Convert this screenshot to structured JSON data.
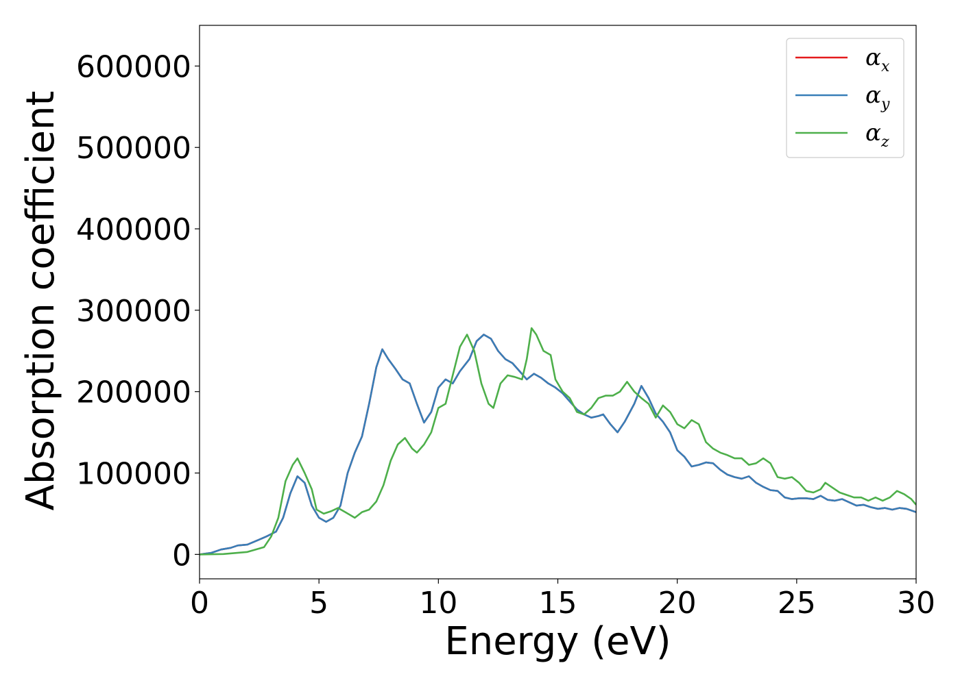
{
  "chart_data": {
    "type": "line",
    "title": "",
    "xlabel": "Energy (eV)",
    "ylabel": "Absorption coefficient",
    "xlim": [
      0,
      30
    ],
    "ylim": [
      -30000,
      650000
    ],
    "xticks": [
      0,
      5,
      10,
      15,
      20,
      25,
      30
    ],
    "yticks": [
      0,
      100000,
      200000,
      300000,
      400000,
      500000,
      600000
    ],
    "xtick_labels": [
      "0",
      "5",
      "10",
      "15",
      "20",
      "25",
      "30"
    ],
    "ytick_labels": [
      "0",
      "100000",
      "200000",
      "300000",
      "400000",
      "500000",
      "600000"
    ],
    "grid": false,
    "legend_position": "top-right",
    "series": [
      {
        "name": "α_x",
        "legend_base": "α",
        "legend_sub": "x",
        "color": "#e41a1c",
        "points": [
          [
            0,
            0
          ],
          [
            0.5,
            2000
          ],
          [
            0.9,
            6000
          ],
          [
            1.3,
            8000
          ],
          [
            1.6,
            11000
          ],
          [
            2.0,
            12000
          ],
          [
            2.4,
            17000
          ],
          [
            2.8,
            22000
          ],
          [
            3.2,
            28000
          ],
          [
            3.5,
            45000
          ],
          [
            3.8,
            75000
          ],
          [
            4.1,
            96000
          ],
          [
            4.4,
            88000
          ],
          [
            4.7,
            60000
          ],
          [
            5.0,
            45000
          ],
          [
            5.3,
            40000
          ],
          [
            5.6,
            45000
          ],
          [
            5.9,
            60000
          ],
          [
            6.2,
            100000
          ],
          [
            6.5,
            125000
          ],
          [
            6.8,
            145000
          ],
          [
            7.1,
            185000
          ],
          [
            7.4,
            230000
          ],
          [
            7.65,
            252000
          ],
          [
            7.9,
            240000
          ],
          [
            8.2,
            228000
          ],
          [
            8.5,
            215000
          ],
          [
            8.8,
            210000
          ],
          [
            9.1,
            185000
          ],
          [
            9.4,
            162000
          ],
          [
            9.7,
            175000
          ],
          [
            10.0,
            205000
          ],
          [
            10.3,
            215000
          ],
          [
            10.6,
            210000
          ],
          [
            10.9,
            225000
          ],
          [
            11.3,
            240000
          ],
          [
            11.6,
            262000
          ],
          [
            11.9,
            270000
          ],
          [
            12.2,
            265000
          ],
          [
            12.5,
            250000
          ],
          [
            12.8,
            240000
          ],
          [
            13.1,
            235000
          ],
          [
            13.4,
            225000
          ],
          [
            13.7,
            215000
          ],
          [
            14.0,
            222000
          ],
          [
            14.3,
            217000
          ],
          [
            14.6,
            210000
          ],
          [
            14.9,
            205000
          ],
          [
            15.2,
            198000
          ],
          [
            15.5,
            188000
          ],
          [
            15.8,
            178000
          ],
          [
            16.1,
            172000
          ],
          [
            16.4,
            168000
          ],
          [
            16.7,
            170000
          ],
          [
            16.9,
            172000
          ],
          [
            17.2,
            160000
          ],
          [
            17.5,
            150000
          ],
          [
            17.8,
            163000
          ],
          [
            18.2,
            185000
          ],
          [
            18.5,
            207000
          ],
          [
            18.8,
            192000
          ],
          [
            19.1,
            173000
          ],
          [
            19.4,
            163000
          ],
          [
            19.7,
            150000
          ],
          [
            20.0,
            128000
          ],
          [
            20.3,
            120000
          ],
          [
            20.6,
            108000
          ],
          [
            20.9,
            110000
          ],
          [
            21.2,
            113000
          ],
          [
            21.5,
            112000
          ],
          [
            21.8,
            104000
          ],
          [
            22.1,
            98000
          ],
          [
            22.4,
            95000
          ],
          [
            22.7,
            93000
          ],
          [
            23.0,
            96000
          ],
          [
            23.3,
            88000
          ],
          [
            23.6,
            83000
          ],
          [
            23.9,
            79000
          ],
          [
            24.2,
            78000
          ],
          [
            24.5,
            70000
          ],
          [
            24.8,
            68000
          ],
          [
            25.1,
            69000
          ],
          [
            25.4,
            69000
          ],
          [
            25.7,
            68000
          ],
          [
            26.0,
            72000
          ],
          [
            26.3,
            67000
          ],
          [
            26.6,
            66000
          ],
          [
            26.9,
            68000
          ],
          [
            27.2,
            64000
          ],
          [
            27.5,
            60000
          ],
          [
            27.8,
            61000
          ],
          [
            28.1,
            58000
          ],
          [
            28.4,
            56000
          ],
          [
            28.7,
            57000
          ],
          [
            29.0,
            55000
          ],
          [
            29.3,
            57000
          ],
          [
            29.6,
            56000
          ],
          [
            30.0,
            52000
          ]
        ]
      },
      {
        "name": "α_y",
        "legend_base": "α",
        "legend_sub": "y",
        "color": "#377eb8",
        "points": [
          [
            0,
            0
          ],
          [
            0.5,
            2000
          ],
          [
            0.9,
            6000
          ],
          [
            1.3,
            8000
          ],
          [
            1.6,
            11000
          ],
          [
            2.0,
            12000
          ],
          [
            2.4,
            17000
          ],
          [
            2.8,
            22000
          ],
          [
            3.2,
            28000
          ],
          [
            3.5,
            45000
          ],
          [
            3.8,
            75000
          ],
          [
            4.1,
            96000
          ],
          [
            4.4,
            88000
          ],
          [
            4.7,
            60000
          ],
          [
            5.0,
            45000
          ],
          [
            5.3,
            40000
          ],
          [
            5.6,
            45000
          ],
          [
            5.9,
            60000
          ],
          [
            6.2,
            100000
          ],
          [
            6.5,
            125000
          ],
          [
            6.8,
            145000
          ],
          [
            7.1,
            185000
          ],
          [
            7.4,
            230000
          ],
          [
            7.65,
            252000
          ],
          [
            7.9,
            240000
          ],
          [
            8.2,
            228000
          ],
          [
            8.5,
            215000
          ],
          [
            8.8,
            210000
          ],
          [
            9.1,
            185000
          ],
          [
            9.4,
            162000
          ],
          [
            9.7,
            175000
          ],
          [
            10.0,
            205000
          ],
          [
            10.3,
            215000
          ],
          [
            10.6,
            210000
          ],
          [
            10.9,
            225000
          ],
          [
            11.3,
            240000
          ],
          [
            11.6,
            262000
          ],
          [
            11.9,
            270000
          ],
          [
            12.2,
            265000
          ],
          [
            12.5,
            250000
          ],
          [
            12.8,
            240000
          ],
          [
            13.1,
            235000
          ],
          [
            13.4,
            225000
          ],
          [
            13.7,
            215000
          ],
          [
            14.0,
            222000
          ],
          [
            14.3,
            217000
          ],
          [
            14.6,
            210000
          ],
          [
            14.9,
            205000
          ],
          [
            15.2,
            198000
          ],
          [
            15.5,
            188000
          ],
          [
            15.8,
            178000
          ],
          [
            16.1,
            172000
          ],
          [
            16.4,
            168000
          ],
          [
            16.7,
            170000
          ],
          [
            16.9,
            172000
          ],
          [
            17.2,
            160000
          ],
          [
            17.5,
            150000
          ],
          [
            17.8,
            163000
          ],
          [
            18.2,
            185000
          ],
          [
            18.5,
            207000
          ],
          [
            18.8,
            192000
          ],
          [
            19.1,
            173000
          ],
          [
            19.4,
            163000
          ],
          [
            19.7,
            150000
          ],
          [
            20.0,
            128000
          ],
          [
            20.3,
            120000
          ],
          [
            20.6,
            108000
          ],
          [
            20.9,
            110000
          ],
          [
            21.2,
            113000
          ],
          [
            21.5,
            112000
          ],
          [
            21.8,
            104000
          ],
          [
            22.1,
            98000
          ],
          [
            22.4,
            95000
          ],
          [
            22.7,
            93000
          ],
          [
            23.0,
            96000
          ],
          [
            23.3,
            88000
          ],
          [
            23.6,
            83000
          ],
          [
            23.9,
            79000
          ],
          [
            24.2,
            78000
          ],
          [
            24.5,
            70000
          ],
          [
            24.8,
            68000
          ],
          [
            25.1,
            69000
          ],
          [
            25.4,
            69000
          ],
          [
            25.7,
            68000
          ],
          [
            26.0,
            72000
          ],
          [
            26.3,
            67000
          ],
          [
            26.6,
            66000
          ],
          [
            26.9,
            68000
          ],
          [
            27.2,
            64000
          ],
          [
            27.5,
            60000
          ],
          [
            27.8,
            61000
          ],
          [
            28.1,
            58000
          ],
          [
            28.4,
            56000
          ],
          [
            28.7,
            57000
          ],
          [
            29.0,
            55000
          ],
          [
            29.3,
            57000
          ],
          [
            29.6,
            56000
          ],
          [
            30.0,
            52000
          ]
        ]
      },
      {
        "name": "α_z",
        "legend_base": "α",
        "legend_sub": "z",
        "color": "#4daf4a",
        "points": [
          [
            0,
            0
          ],
          [
            1.0,
            500
          ],
          [
            2.0,
            3000
          ],
          [
            2.7,
            9000
          ],
          [
            3.0,
            22000
          ],
          [
            3.3,
            45000
          ],
          [
            3.6,
            90000
          ],
          [
            3.9,
            110000
          ],
          [
            4.1,
            118000
          ],
          [
            4.4,
            100000
          ],
          [
            4.7,
            80000
          ],
          [
            4.9,
            55000
          ],
          [
            5.2,
            50000
          ],
          [
            5.5,
            53000
          ],
          [
            5.8,
            57000
          ],
          [
            6.1,
            52000
          ],
          [
            6.5,
            45000
          ],
          [
            6.8,
            52000
          ],
          [
            7.1,
            55000
          ],
          [
            7.4,
            65000
          ],
          [
            7.7,
            85000
          ],
          [
            8.0,
            115000
          ],
          [
            8.3,
            135000
          ],
          [
            8.6,
            143000
          ],
          [
            8.9,
            130000
          ],
          [
            9.1,
            125000
          ],
          [
            9.4,
            135000
          ],
          [
            9.7,
            150000
          ],
          [
            10.0,
            180000
          ],
          [
            10.3,
            185000
          ],
          [
            10.6,
            220000
          ],
          [
            10.9,
            255000
          ],
          [
            11.2,
            270000
          ],
          [
            11.5,
            250000
          ],
          [
            11.8,
            210000
          ],
          [
            12.1,
            185000
          ],
          [
            12.3,
            180000
          ],
          [
            12.6,
            210000
          ],
          [
            12.9,
            220000
          ],
          [
            13.2,
            218000
          ],
          [
            13.5,
            215000
          ],
          [
            13.7,
            240000
          ],
          [
            13.9,
            278000
          ],
          [
            14.1,
            270000
          ],
          [
            14.4,
            250000
          ],
          [
            14.7,
            245000
          ],
          [
            14.9,
            215000
          ],
          [
            15.2,
            200000
          ],
          [
            15.5,
            192000
          ],
          [
            15.8,
            175000
          ],
          [
            16.1,
            172000
          ],
          [
            16.4,
            180000
          ],
          [
            16.7,
            192000
          ],
          [
            17.0,
            195000
          ],
          [
            17.3,
            195000
          ],
          [
            17.6,
            200000
          ],
          [
            17.9,
            212000
          ],
          [
            18.2,
            200000
          ],
          [
            18.5,
            192000
          ],
          [
            18.8,
            185000
          ],
          [
            19.1,
            168000
          ],
          [
            19.4,
            183000
          ],
          [
            19.7,
            175000
          ],
          [
            20.0,
            160000
          ],
          [
            20.3,
            155000
          ],
          [
            20.6,
            165000
          ],
          [
            20.9,
            160000
          ],
          [
            21.2,
            138000
          ],
          [
            21.5,
            130000
          ],
          [
            21.8,
            125000
          ],
          [
            22.1,
            122000
          ],
          [
            22.4,
            118000
          ],
          [
            22.7,
            118000
          ],
          [
            23.0,
            110000
          ],
          [
            23.3,
            112000
          ],
          [
            23.6,
            118000
          ],
          [
            23.9,
            112000
          ],
          [
            24.2,
            95000
          ],
          [
            24.5,
            93000
          ],
          [
            24.8,
            95000
          ],
          [
            25.1,
            88000
          ],
          [
            25.4,
            78000
          ],
          [
            25.7,
            76000
          ],
          [
            26.0,
            80000
          ],
          [
            26.2,
            88000
          ],
          [
            26.5,
            82000
          ],
          [
            26.8,
            76000
          ],
          [
            27.1,
            73000
          ],
          [
            27.4,
            70000
          ],
          [
            27.7,
            70000
          ],
          [
            28.0,
            66000
          ],
          [
            28.3,
            70000
          ],
          [
            28.6,
            66000
          ],
          [
            28.9,
            70000
          ],
          [
            29.2,
            78000
          ],
          [
            29.5,
            74000
          ],
          [
            29.8,
            68000
          ],
          [
            30.0,
            61000
          ]
        ]
      }
    ]
  }
}
